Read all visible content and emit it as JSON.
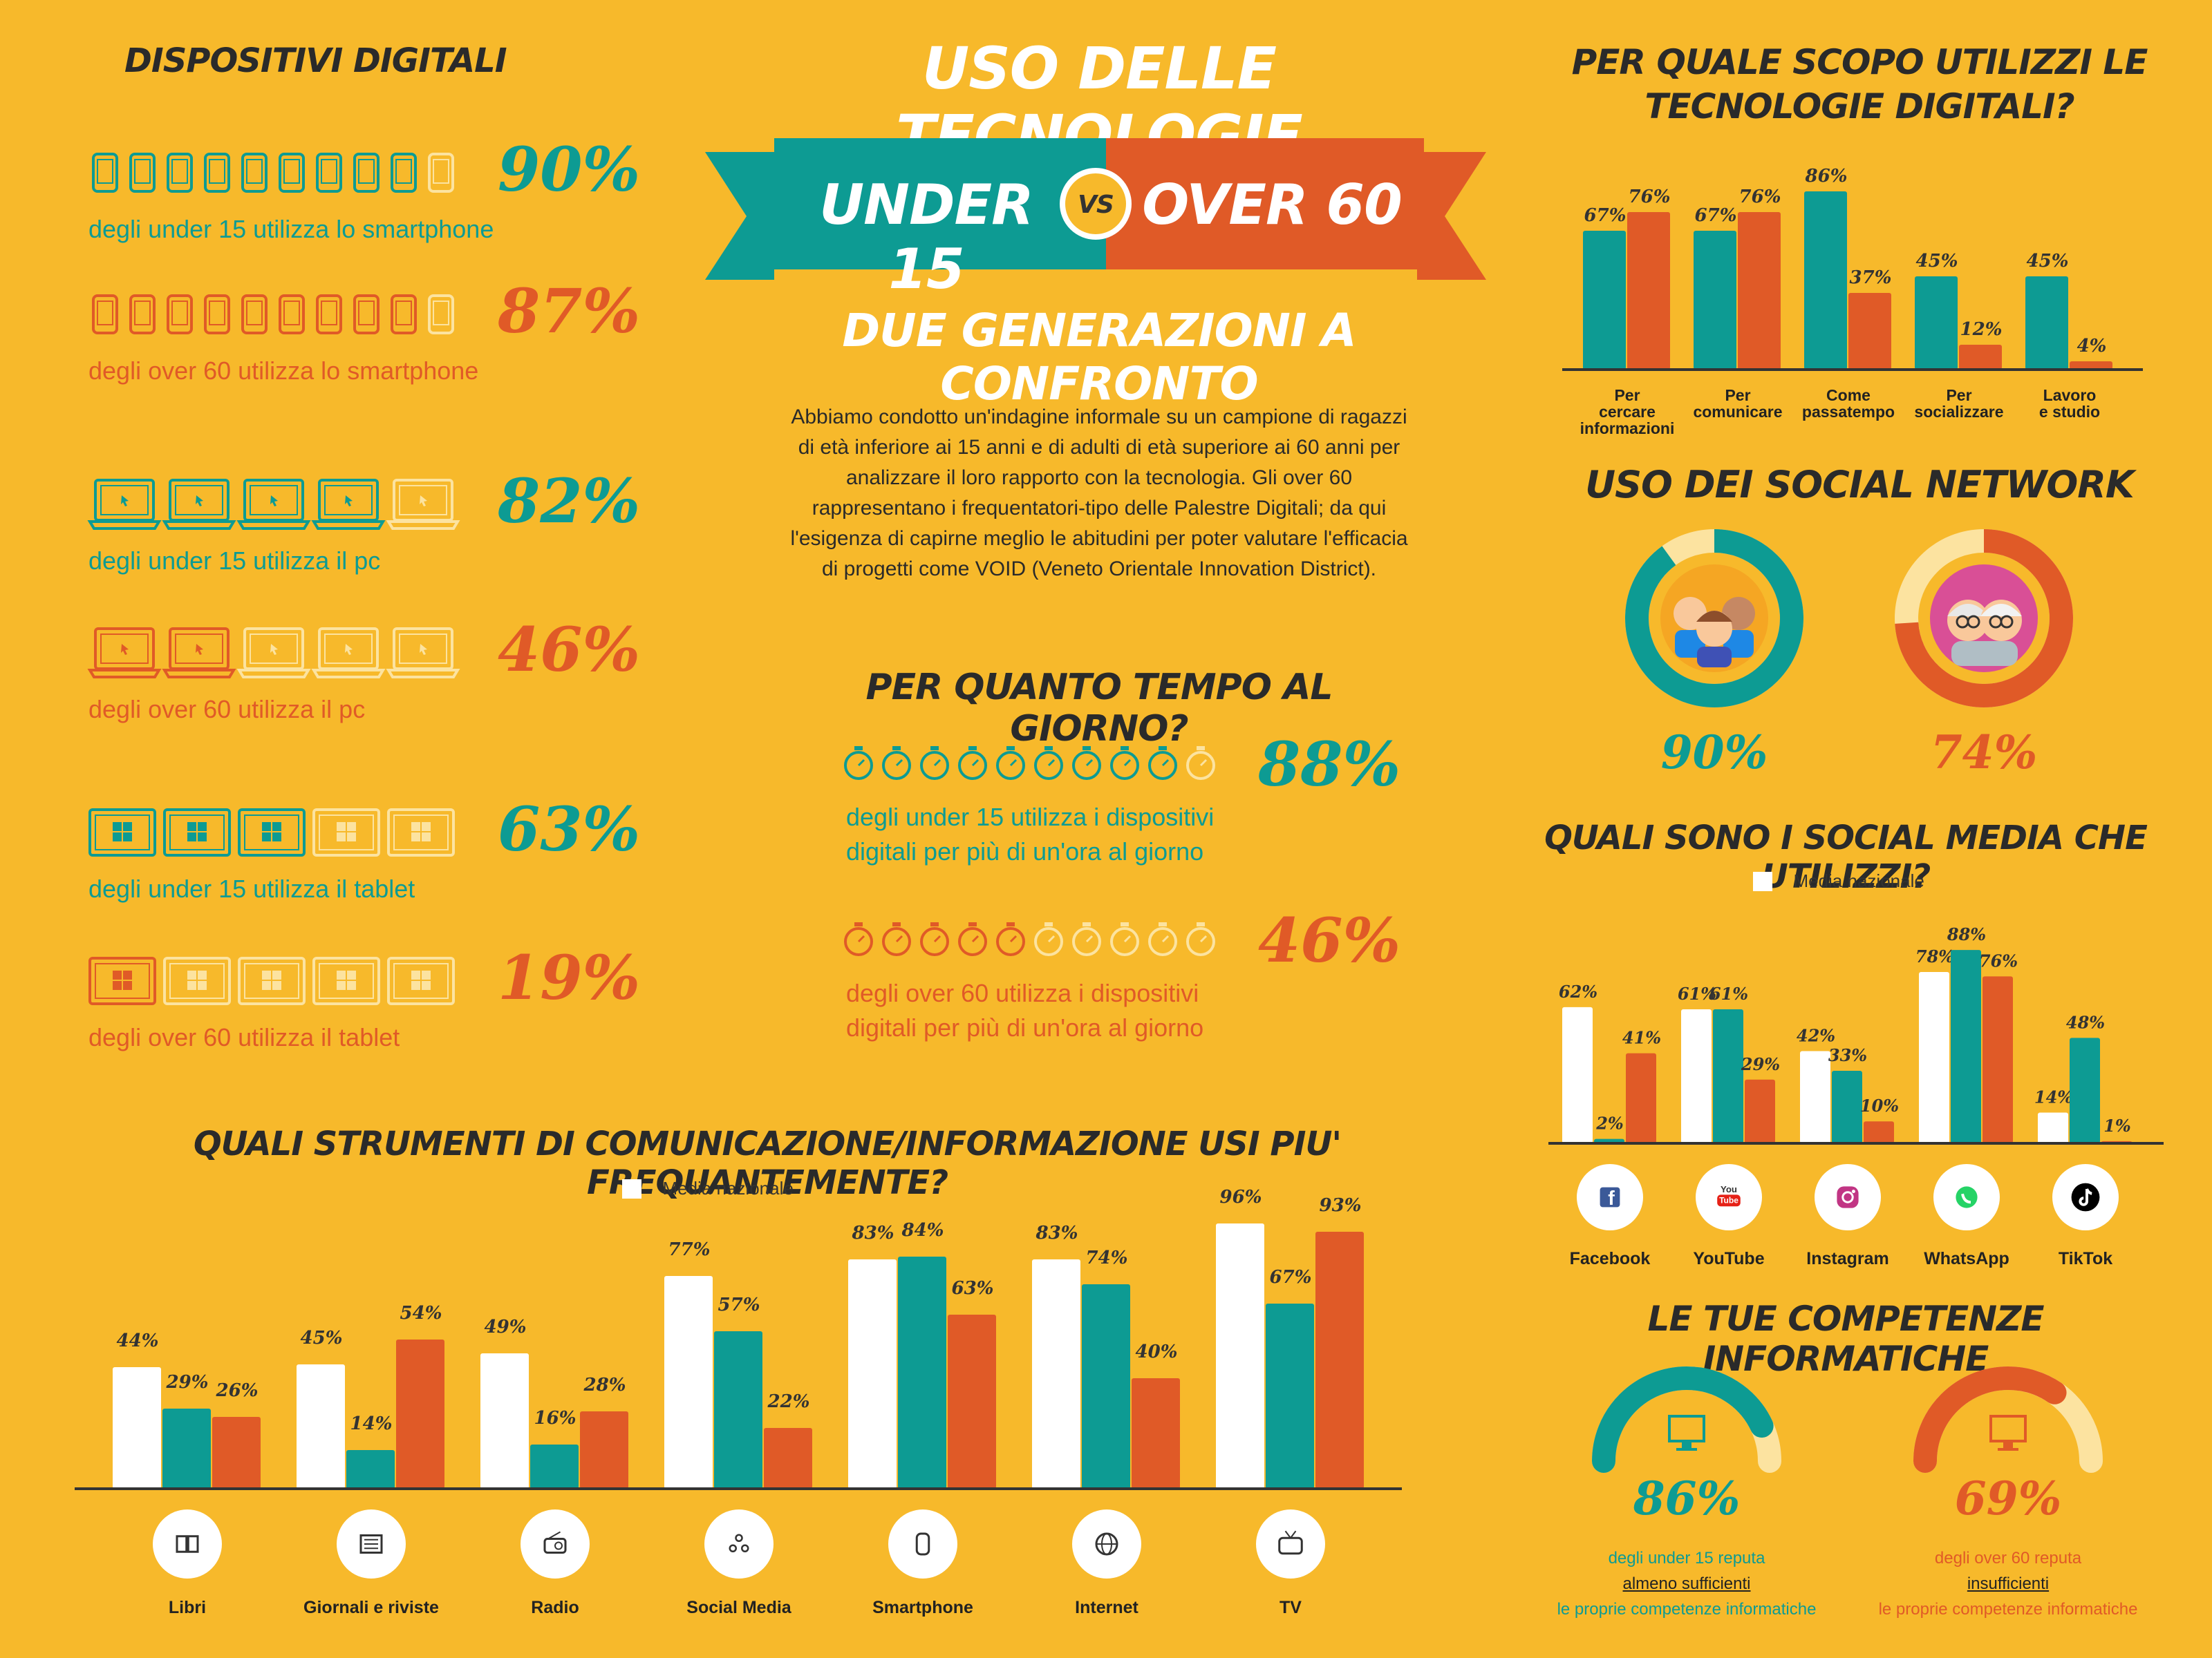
{
  "colors": {
    "background": "#F7B92B",
    "teal": "#0D9B93",
    "orange": "#E05A27",
    "white": "#FFFFFF",
    "faded": "#FCE3A0"
  },
  "header": {
    "title": "USO DELLE TECNOLOGIE",
    "under": "UNDER 15",
    "vs": "VS",
    "over": "OVER 60",
    "subtitle": "DUE GENERAZIONI A CONFRONTO",
    "intro": "Abbiamo condotto un'indagine informale su un campione di ragazzi di età inferiore ai 15 anni e di adulti di età superiore ai 60 anni per analizzare il loro rapporto con la tecnologia. Gli over 60 rappresentano i frequentatori-tipo delle Palestre Digitali; da qui l'esigenza di capirne meglio le abitudini per poter valutare l'efficacia di progetti come VOID (Veneto Orientale Innovation District)."
  },
  "devices": {
    "title": "DISPOSITIVI DIGITALI",
    "rows": [
      {
        "pct": "90%",
        "text": "degli under 15 utilizza lo smartphone",
        "group": "teal",
        "icon": "smartphone-icon",
        "filled": 9,
        "total": 10
      },
      {
        "pct": "87%",
        "text": "degli over 60 utilizza lo smartphone",
        "group": "orange",
        "icon": "smartphone-icon",
        "filled": 9,
        "total": 10
      },
      {
        "pct": "82%",
        "text": "degli under 15 utilizza il pc",
        "group": "teal",
        "icon": "laptop-icon",
        "filled": 4,
        "total": 5
      },
      {
        "pct": "46%",
        "text": "degli over 60 utilizza il pc",
        "group": "orange",
        "icon": "laptop-icon",
        "filled": 2,
        "total": 5
      },
      {
        "pct": "63%",
        "text": "degli under 15 utilizza il tablet",
        "group": "teal",
        "icon": "tablet-icon",
        "filled": 3,
        "total": 5
      },
      {
        "pct": "19%",
        "text": "degli over 60 utilizza il tablet",
        "group": "orange",
        "icon": "tablet-icon",
        "filled": 1,
        "total": 5
      }
    ]
  },
  "time": {
    "title": "PER QUANTO TEMPO AL GIORNO?",
    "rows": [
      {
        "pct": "88%",
        "line1": "degli under 15 utilizza i dispositivi",
        "line2": "digitali per più di un'ora al giorno",
        "group": "teal",
        "filled": 9,
        "total": 10
      },
      {
        "pct": "46%",
        "line1": "degli over 60 utilizza i dispositivi",
        "line2": "digitali per più di un'ora al giorno",
        "group": "orange",
        "filled": 5,
        "total": 10
      }
    ]
  },
  "social_usage": {
    "title": "USO DEI SOCIAL NETWORK",
    "under_pct": "90%",
    "under_value": 90,
    "over_pct": "74%",
    "over_value": 74
  },
  "skills": {
    "title": "LE TUE COMPETENZE INFORMATICHE",
    "under_pct": "86%",
    "under_value": 86,
    "under_l1": "degli under 15 reputa",
    "under_l2": "almeno sufficienti",
    "under_l3": "le proprie competenze informatiche",
    "over_pct": "69%",
    "over_value": 69,
    "over_l1": "degli over 60 reputa",
    "over_l2": "insufficienti",
    "over_l3": "le proprie competenze informatiche"
  },
  "chart_data": [
    {
      "id": "purpose",
      "type": "bar",
      "title": "PER QUALE SCOPO UTILIZZI LE TECNOLOGIE DIGITALI?",
      "categories": [
        [
          "Per",
          "cercare",
          "informazioni"
        ],
        [
          "Per",
          "comunicare"
        ],
        [
          "Come",
          "passatempo"
        ],
        [
          "Per",
          "socializzare"
        ],
        [
          "Lavoro",
          "e studio"
        ]
      ],
      "series": [
        {
          "color": "#0D9B93",
          "values": [
            67,
            67,
            86,
            45,
            45
          ]
        },
        {
          "color": "#E05A27",
          "values": [
            76,
            76,
            37,
            12,
            4
          ]
        }
      ],
      "ylim": [
        0,
        100
      ]
    },
    {
      "id": "social",
      "type": "bar",
      "title": "QUALI SONO I SOCIAL MEDIA CHE UTILIZZI?",
      "legend": "Media nazionale",
      "categories": [
        "Facebook",
        "YouTube",
        "Instagram",
        "WhatsApp",
        "TikTok"
      ],
      "icons": [
        "facebook-icon",
        "youtube-icon",
        "instagram-icon",
        "whatsapp-icon",
        "tiktok-icon"
      ],
      "series": [
        {
          "name": "Media nazionale",
          "color": "#FFFFFF",
          "values": [
            62,
            61,
            42,
            78,
            14
          ]
        },
        {
          "color": "#0D9B93",
          "values": [
            2,
            61,
            33,
            88,
            48
          ]
        },
        {
          "color": "#E05A27",
          "values": [
            41,
            29,
            10,
            76,
            1
          ]
        }
      ],
      "ylim": [
        0,
        100
      ]
    },
    {
      "id": "comm",
      "type": "bar",
      "title": "QUALI STRUMENTI DI COMUNICAZIONE/INFORMAZIONE USI PIU' FREQUANTEMENTE?",
      "legend": "Media nazionale",
      "categories": [
        "Libri",
        "Giornali e riviste",
        "Radio",
        "Social Media",
        "Smartphone",
        "Internet",
        "TV"
      ],
      "icons": [
        "book-icon",
        "newspaper-icon",
        "radio-icon",
        "social-media-icon",
        "smartphone-icon",
        "globe-icon",
        "tv-icon"
      ],
      "series": [
        {
          "name": "Media nazionale",
          "color": "#FFFFFF",
          "values": [
            44,
            45,
            49,
            77,
            83,
            83,
            96
          ]
        },
        {
          "color": "#0D9B93",
          "values": [
            29,
            14,
            16,
            57,
            84,
            74,
            67
          ]
        },
        {
          "color": "#E05A27",
          "values": [
            26,
            54,
            28,
            22,
            63,
            40,
            93
          ]
        }
      ],
      "ylim": [
        0,
        100
      ]
    }
  ]
}
